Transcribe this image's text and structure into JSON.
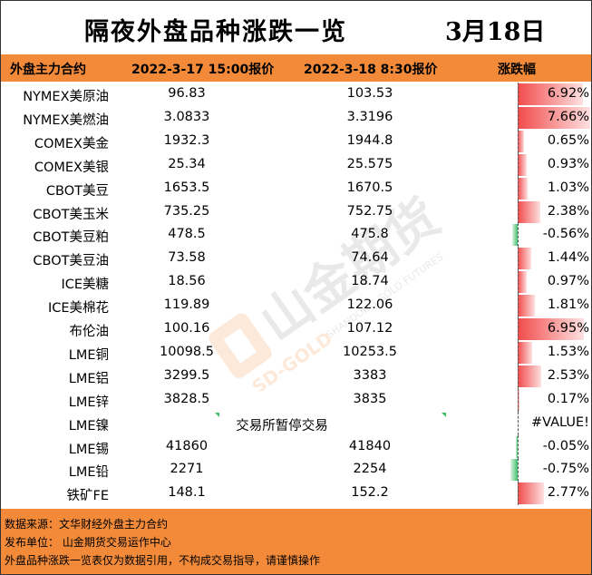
{
  "title": "隔夜外盘品种涨跌一览",
  "date": "3月18日",
  "header": {
    "col_name": "外盘主力合约",
    "col_v1": "2022-3-17 15:00报价",
    "col_v2": "2022-3-18 8:30报价",
    "col_change": "涨跌幅"
  },
  "rows": [
    {
      "name": "NYMEX美原油",
      "v1": "96.83",
      "v2": "103.53",
      "change": "6.92%",
      "pct": 6.92
    },
    {
      "name": "NYMEX美燃油",
      "v1": "3.0833",
      "v2": "3.3196",
      "change": "7.66%",
      "pct": 7.66
    },
    {
      "name": "COMEX美金",
      "v1": "1932.3",
      "v2": "1944.8",
      "change": "0.65%",
      "pct": 0.65
    },
    {
      "name": "COMEX美银",
      "v1": "25.34",
      "v2": "25.575",
      "change": "0.93%",
      "pct": 0.93
    },
    {
      "name": "CBOT美豆",
      "v1": "1653.5",
      "v2": "1670.5",
      "change": "1.03%",
      "pct": 1.03
    },
    {
      "name": "CBOT美玉米",
      "v1": "735.25",
      "v2": "752.75",
      "change": "2.38%",
      "pct": 2.38
    },
    {
      "name": "CBOT美豆粕",
      "v1": "478.5",
      "v2": "475.8",
      "change": "-0.56%",
      "pct": -0.56
    },
    {
      "name": "CBOT美豆油",
      "v1": "73.58",
      "v2": "74.64",
      "change": "1.44%",
      "pct": 1.44
    },
    {
      "name": "ICE美糖",
      "v1": "18.56",
      "v2": "18.74",
      "change": "0.97%",
      "pct": 0.97
    },
    {
      "name": "ICE美棉花",
      "v1": "119.89",
      "v2": "122.06",
      "change": "1.81%",
      "pct": 1.81
    },
    {
      "name": "布伦油",
      "v1": "100.16",
      "v2": "107.12",
      "change": "6.95%",
      "pct": 6.95
    },
    {
      "name": "LME铜",
      "v1": "10098.5",
      "v2": "10253.5",
      "change": "1.53%",
      "pct": 1.53
    },
    {
      "name": "LME铝",
      "v1": "3299.5",
      "v2": "3383",
      "change": "2.53%",
      "pct": 2.53
    },
    {
      "name": "LME锌",
      "v1": "3828.5",
      "v2": "3835",
      "change": "0.17%",
      "pct": 0.17
    },
    {
      "name": "LME镍",
      "note": "交易所暂停交易",
      "change": "#VALUE!",
      "pct": null
    },
    {
      "name": "LME锡",
      "v1": "41860",
      "v2": "41840",
      "change": "-0.05%",
      "pct": -0.05
    },
    {
      "name": "LME铅",
      "v1": "2271",
      "v2": "2254",
      "change": "-0.75%",
      "pct": -0.75
    },
    {
      "name": "铁矿FE",
      "v1": "148.1",
      "v2": "152.2",
      "change": "2.77%",
      "pct": 2.77
    }
  ],
  "footer": {
    "source": "数据来源：文华财经外盘主力合约",
    "publisher": "发布单位：  山金期货交易运作中心",
    "disclaimer": "外盘品种涨跌一览表仅为数据引用，不构成交易指导，请谨慎操作"
  },
  "watermark": {
    "brand": "山金期货",
    "brand_en": "SD-GOLD",
    "brand_sub": "SHANDONG GOLD FUTURES",
    "accent_color": "#f28a3a"
  },
  "colors": {
    "header_bg": "#f28a3a",
    "positive_bar": "#f24b4b",
    "negative_bar": "#3fbf6a"
  }
}
